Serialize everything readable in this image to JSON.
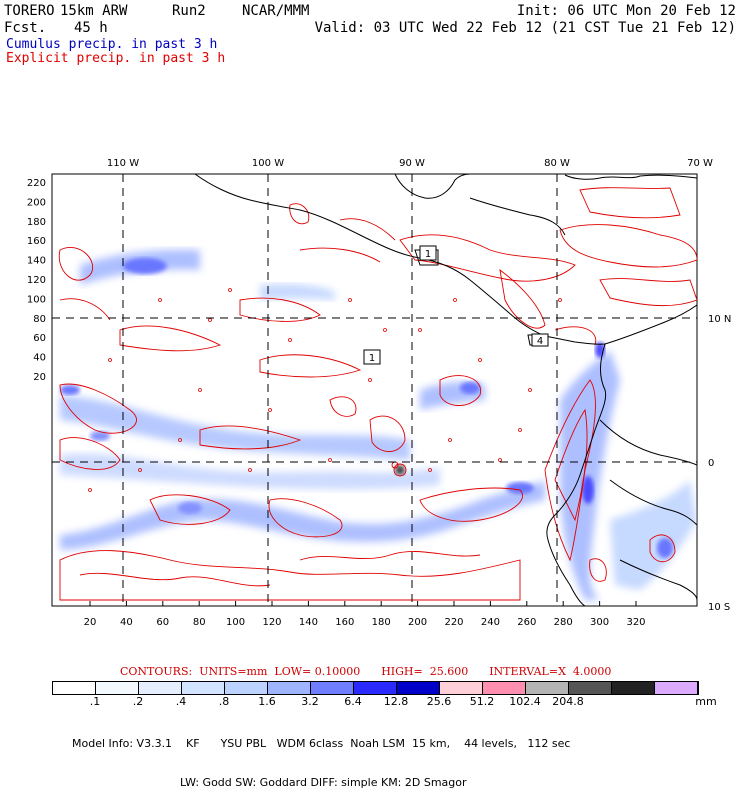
{
  "header": {
    "model": "TORERO",
    "resolution": "15km ARW",
    "run": "Run2",
    "org": "NCAR/MMM",
    "init": "Init: 06 UTC Mon 20 Feb 12",
    "fcst_label": "Fcst.",
    "fcst_value": "45 h",
    "valid": "Valid: 03 UTC Wed 22 Feb 12 (21 CST Tue 21 Feb 12)"
  },
  "legend_lines": {
    "cumulus": "Cumulus precip. in past 3 h",
    "explicit": "Explicit precip. in past 3 h"
  },
  "map": {
    "lon_labels": [
      "110 W",
      "100 W",
      "90 W",
      "80 W",
      "70 W"
    ],
    "lat_labels": [
      "10 N",
      "0",
      "10 S"
    ],
    "x_ticks": [
      "20",
      "40",
      "60",
      "80",
      "100",
      "120",
      "140",
      "160",
      "180",
      "200",
      "220",
      "240",
      "260",
      "280",
      "300",
      "320"
    ],
    "y_ticks": [
      "220",
      "200",
      "180",
      "160",
      "140",
      "120",
      "100",
      "80",
      "60",
      "40",
      "20"
    ],
    "box_labels": [
      "1",
      "1",
      "4"
    ],
    "colors": {
      "cumulus": "#0000c8",
      "explicit": "#e00000"
    }
  },
  "contours_text": "CONTOURS:  UNITS=mm  LOW= 0.10000      HIGH=  25.600      INTERVAL=X  4.0000",
  "color_scale": {
    "labels": [
      ".1",
      ".2",
      ".4",
      ".8",
      "1.6",
      "3.2",
      "6.4",
      "12.8",
      "25.6",
      "51.2",
      "102.4",
      "204.8"
    ],
    "units": "mm",
    "colors": [
      "#ffffff",
      "#f4f8ff",
      "#e6efff",
      "#d2e4ff",
      "#bcd2ff",
      "#9fb4ff",
      "#6f7eff",
      "#2a2aff",
      "#0000c8",
      "#ffd0d8",
      "#ff8fb0",
      "#b4b4b4",
      "#555555",
      "#222222",
      "#dcaaff"
    ]
  },
  "model_info": {
    "line1": "Model Info: V3.3.1    KF      YSU PBL   WDM 6class  Noah LSM  15 km,    44 levels,   112 sec",
    "line2": "LW: Godd SW: Goddard DIFF: simple KM: 2D Smagor"
  }
}
